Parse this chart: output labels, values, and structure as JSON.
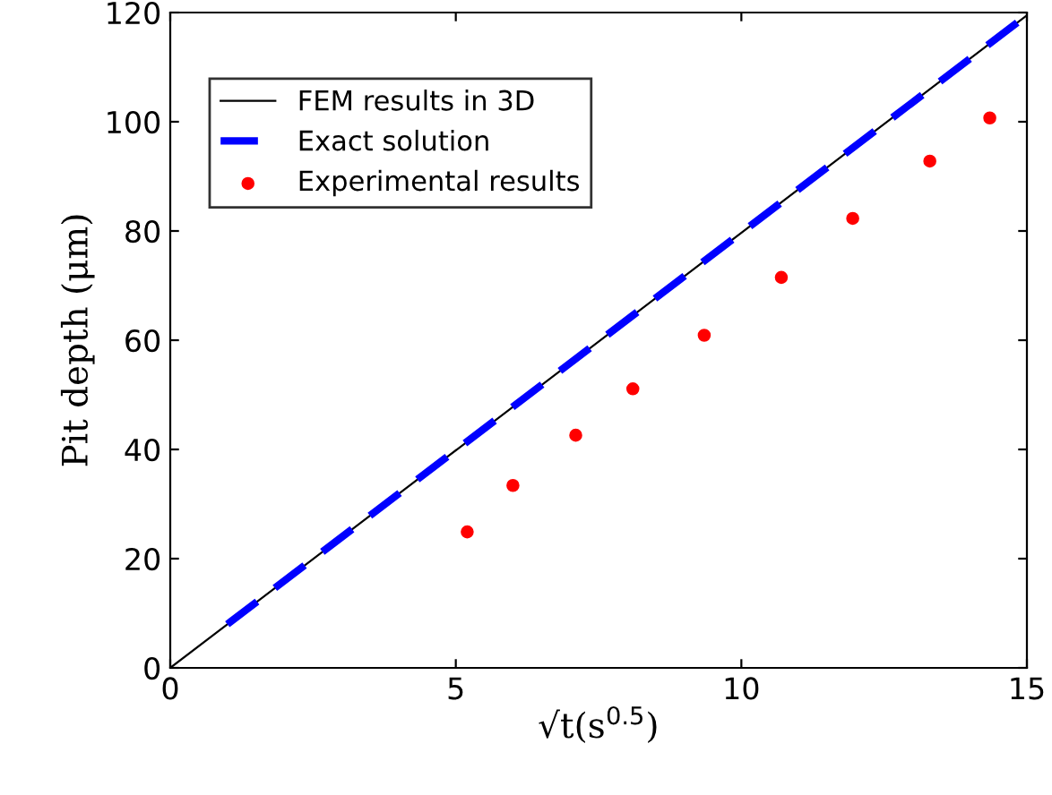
{
  "chart_data": {
    "type": "line",
    "xlabel": "√t(s$^{0.5}$)",
    "ylabel": "Pit depth (μm)",
    "series": [
      {
        "name": "FEM results in 3D",
        "color": "#000000",
        "x": [
          0,
          15
        ],
        "values": [
          0,
          119.5
        ],
        "line_style": "solid"
      },
      {
        "name": "Exact solution",
        "color": "#0000ff",
        "x": [
          1,
          15
        ],
        "values": [
          8,
          119.5
        ],
        "line_style": "dashed"
      },
      {
        "name": "Experimental results",
        "type": "scatter",
        "color": "#ff0000",
        "x": [
          5.2,
          6.0,
          7.1,
          8.1,
          9.35,
          10.7,
          11.95,
          13.3,
          14.35
        ],
        "values": [
          24.9,
          33.4,
          42.6,
          51.1,
          60.9,
          71.5,
          82.3,
          92.8,
          100.7
        ],
        "marker": "circle"
      }
    ],
    "xlim": [
      0,
      15
    ],
    "ylim": [
      0,
      120
    ],
    "xticks": [
      0,
      5,
      10,
      15
    ],
    "yticks": [
      0,
      20,
      40,
      60,
      80,
      100,
      120
    ],
    "grid": false,
    "legend": "top left"
  }
}
